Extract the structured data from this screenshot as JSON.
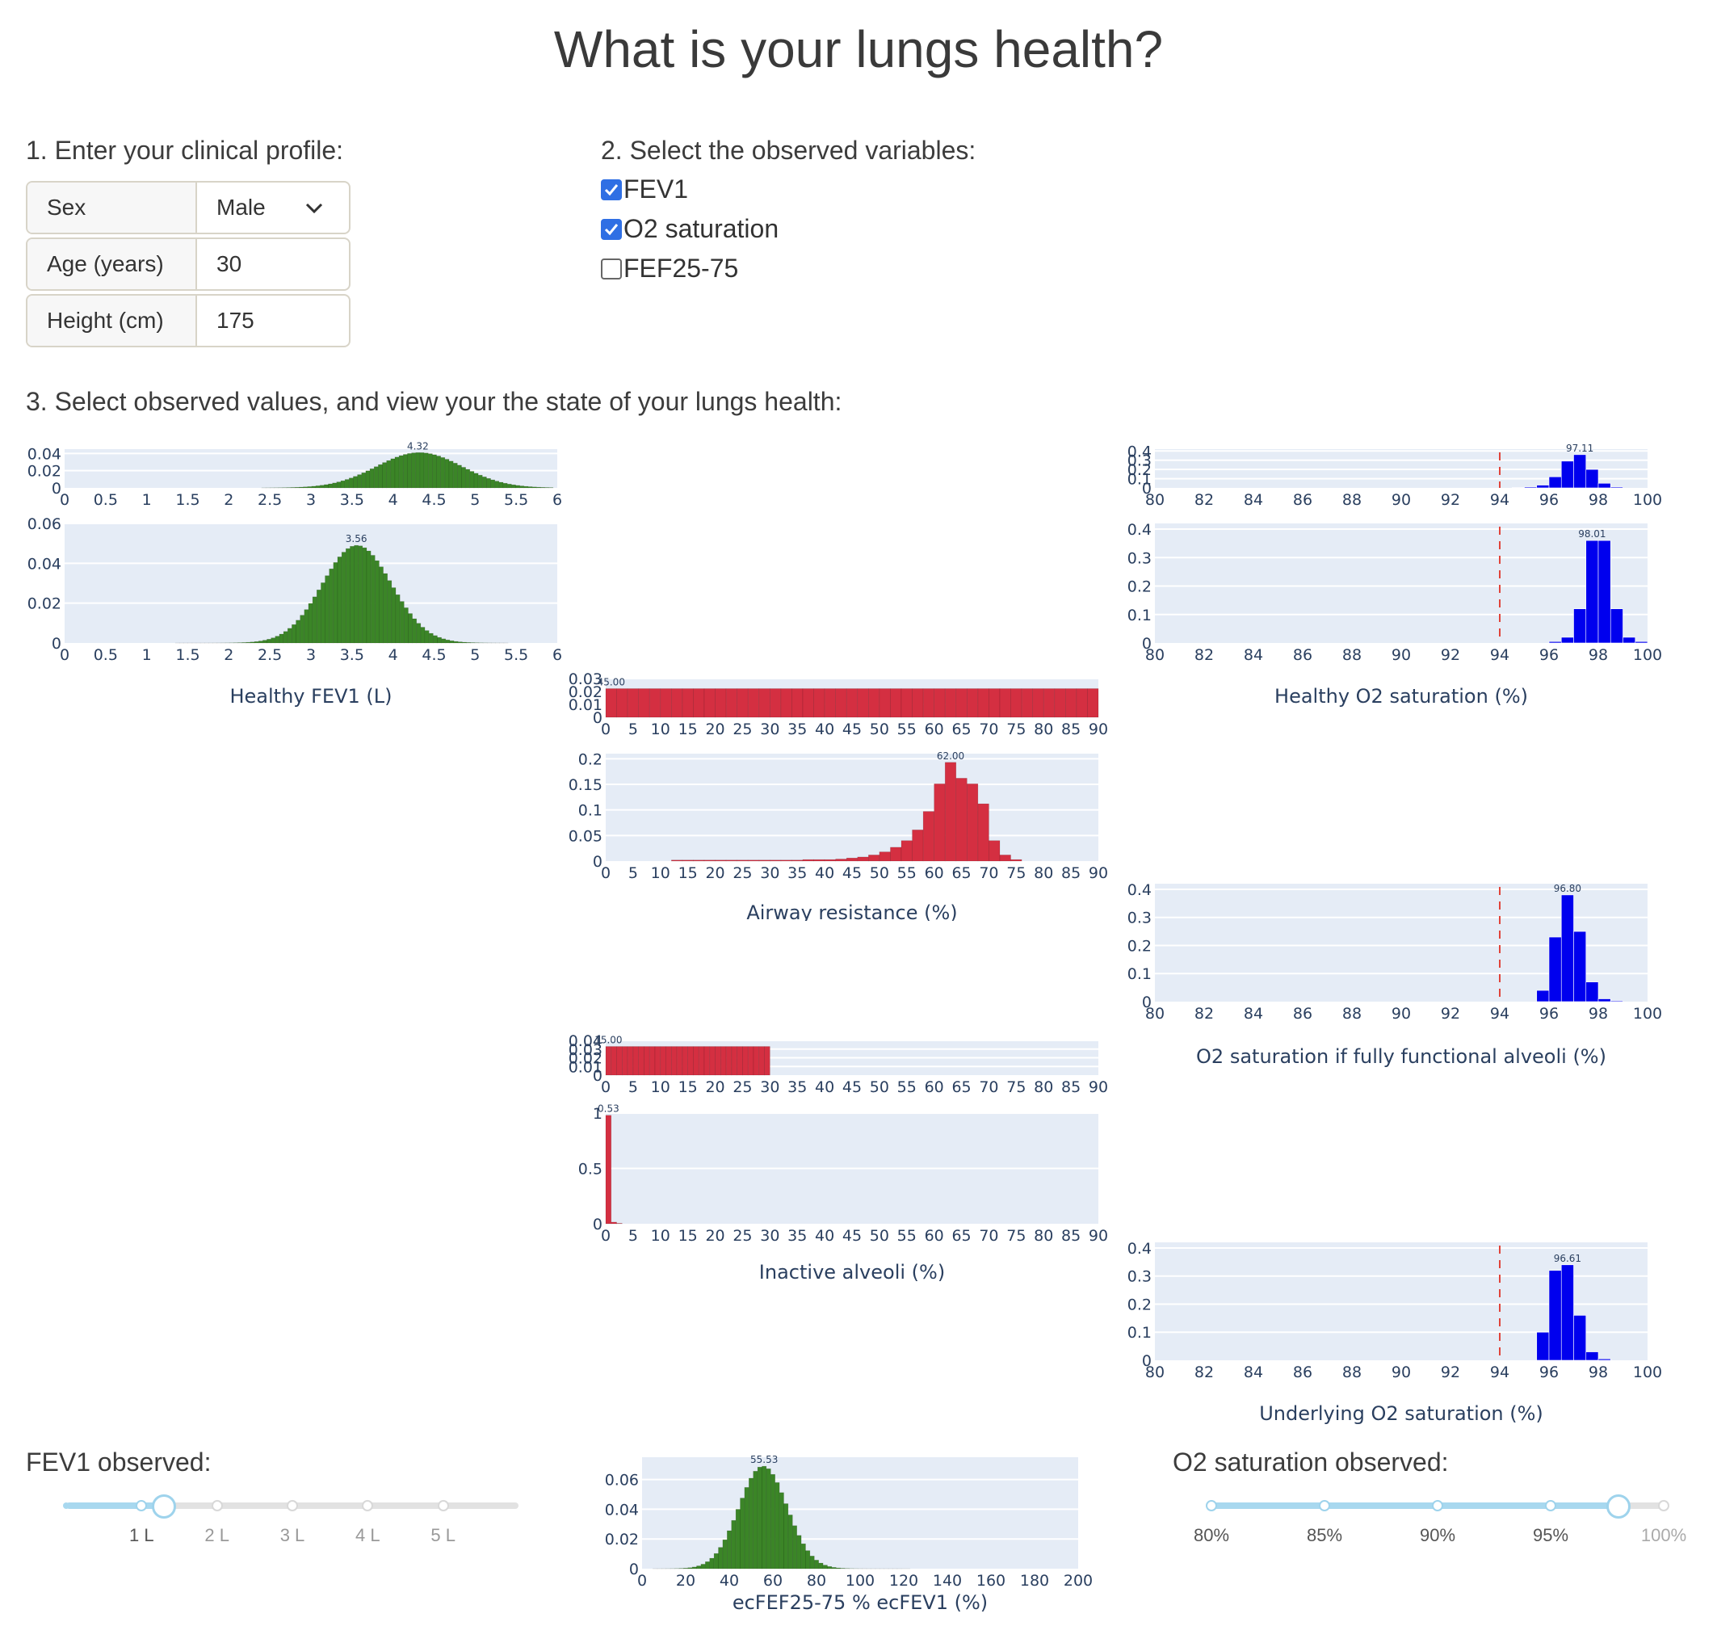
{
  "title": "What is your lungs health?",
  "section1": {
    "heading": "1. Enter your clinical profile:",
    "fields": [
      {
        "label": "Sex",
        "value": "Male"
      },
      {
        "label": "Age (years)",
        "value": "30"
      },
      {
        "label": "Height (cm)",
        "value": "175"
      }
    ]
  },
  "section2": {
    "heading": "2. Select the observed variables:",
    "variables": [
      {
        "label": "FEV1",
        "checked": true
      },
      {
        "label": "O2 saturation",
        "checked": true
      },
      {
        "label": "FEF25-75",
        "checked": false
      }
    ]
  },
  "section3": {
    "heading": "3. Select observed values, and view your the state of your lungs health:"
  },
  "colors": {
    "green": "#3b8527",
    "red": "#d42f41",
    "blue": "#0000ee",
    "plot_bg": "#e5ecf6",
    "ref_line": "#e0443a"
  },
  "chart_data": [
    {
      "type": "bar",
      "xlabel": "Healthy FEV1 (L)",
      "xticks": [
        "0",
        "0.5",
        "1",
        "1.5",
        "2",
        "2.5",
        "3",
        "3.5",
        "4",
        "4.5",
        "5",
        "5.5",
        "6"
      ],
      "top": {
        "annotation": "4.32",
        "xlim": [
          0,
          6
        ],
        "ylim": [
          0,
          0.045
        ],
        "yticks": [
          "0",
          "0.02",
          "0.04"
        ],
        "dist": {
          "kind": "normal",
          "mean": 4.32,
          "sd": 0.52,
          "peak": 0.041,
          "from": 2.4,
          "to": 5.95,
          "n": 70
        }
      },
      "bottom": {
        "annotation": "3.56",
        "xlim": [
          0,
          6
        ],
        "ylim": [
          0,
          0.06
        ],
        "yticks": [
          "0",
          "0.02",
          "0.04",
          "0.06"
        ],
        "dist": {
          "kind": "normal",
          "mean": 3.56,
          "sd": 0.42,
          "peak": 0.049,
          "from": 1.35,
          "to": 5.4,
          "n": 80
        }
      }
    },
    {
      "type": "bar",
      "xlabel": "Airway resistance (%)",
      "xticks": [
        "0",
        "5",
        "10",
        "15",
        "20",
        "25",
        "30",
        "35",
        "40",
        "45",
        "50",
        "55",
        "60",
        "65",
        "70",
        "75",
        "80",
        "85",
        "90"
      ],
      "top": {
        "annotation": "45.00",
        "xlim": [
          0,
          90
        ],
        "ylim": [
          0,
          0.03
        ],
        "yticks": [
          "0",
          "0.01",
          "0.02",
          "0.03"
        ],
        "dist": {
          "kind": "uniform",
          "value": 0.0222,
          "from": 0,
          "to": 90,
          "n": 45
        }
      },
      "bottom": {
        "annotation": "62.00",
        "xlim": [
          0,
          90
        ],
        "ylim": [
          0,
          0.21
        ],
        "yticks": [
          "0",
          "0.05",
          "0.1",
          "0.15",
          "0.2"
        ],
        "bin_width": 2,
        "bins": [
          [
            12,
            0.002
          ],
          [
            14,
            0.002
          ],
          [
            16,
            0.002
          ],
          [
            18,
            0.002
          ],
          [
            20,
            0.002
          ],
          [
            22,
            0.002
          ],
          [
            24,
            0.002
          ],
          [
            26,
            0.002
          ],
          [
            28,
            0.002
          ],
          [
            30,
            0.002
          ],
          [
            32,
            0.002
          ],
          [
            34,
            0.002
          ],
          [
            36,
            0.003
          ],
          [
            38,
            0.003
          ],
          [
            40,
            0.003
          ],
          [
            42,
            0.004
          ],
          [
            44,
            0.006
          ],
          [
            46,
            0.008
          ],
          [
            48,
            0.012
          ],
          [
            50,
            0.018
          ],
          [
            52,
            0.027
          ],
          [
            54,
            0.04
          ],
          [
            56,
            0.061
          ],
          [
            58,
            0.097
          ],
          [
            60,
            0.151
          ],
          [
            62,
            0.193
          ],
          [
            64,
            0.162
          ],
          [
            66,
            0.151
          ],
          [
            68,
            0.112
          ],
          [
            70,
            0.04
          ],
          [
            72,
            0.012
          ],
          [
            74,
            0.003
          ]
        ]
      }
    },
    {
      "type": "bar",
      "xlabel": "Healthy O2 saturation (%)",
      "xticks": [
        "80",
        "82",
        "84",
        "86",
        "88",
        "90",
        "92",
        "94",
        "96",
        "98",
        "100"
      ],
      "reference_line": 94,
      "top": {
        "annotation": "97.11",
        "xlim": [
          80,
          100
        ],
        "ylim": [
          0,
          0.42
        ],
        "yticks": [
          "0",
          "0.1",
          "0.2",
          "0.3",
          "0.4"
        ],
        "bin_width": 0.5,
        "bins": [
          [
            94.5,
            0.005
          ],
          [
            95,
            0.01
          ],
          [
            95.5,
            0.03
          ],
          [
            96,
            0.12
          ],
          [
            96.5,
            0.29
          ],
          [
            97,
            0.36
          ],
          [
            97.5,
            0.2
          ],
          [
            98,
            0.05
          ],
          [
            98.5,
            0.01
          ]
        ]
      },
      "bottom": {
        "annotation": "98.01",
        "xlim": [
          80,
          100
        ],
        "ylim": [
          0,
          0.42
        ],
        "yticks": [
          "0",
          "0.1",
          "0.2",
          "0.3",
          "0.4"
        ],
        "bin_width": 0.5,
        "bins": [
          [
            96,
            0.005
          ],
          [
            96.5,
            0.02
          ],
          [
            97,
            0.12
          ],
          [
            97.5,
            0.36
          ],
          [
            98,
            0.36
          ],
          [
            98.5,
            0.12
          ],
          [
            99,
            0.02
          ],
          [
            99.5,
            0.005
          ]
        ]
      }
    },
    {
      "type": "bar",
      "xlabel": "O2 saturation if fully functional alveoli (%)",
      "xticks": [
        "80",
        "82",
        "84",
        "86",
        "88",
        "90",
        "92",
        "94",
        "96",
        "98",
        "100"
      ],
      "reference_line": 94,
      "annotation": "96.80",
      "xlim": [
        80,
        100
      ],
      "ylim": [
        0,
        0.42
      ],
      "yticks": [
        "0",
        "0.1",
        "0.2",
        "0.3",
        "0.4"
      ],
      "bin_width": 0.5,
      "bins": [
        [
          95.5,
          0.04
        ],
        [
          96,
          0.23
        ],
        [
          96.5,
          0.38
        ],
        [
          97,
          0.25
        ],
        [
          97.5,
          0.07
        ],
        [
          98,
          0.01
        ],
        [
          98.5,
          0.003
        ]
      ]
    },
    {
      "type": "bar",
      "xlabel": "Inactive alveoli (%)",
      "xticks": [
        "0",
        "5",
        "10",
        "15",
        "20",
        "25",
        "30",
        "35",
        "40",
        "45",
        "50",
        "55",
        "60",
        "65",
        "70",
        "75",
        "80",
        "85",
        "90"
      ],
      "top": {
        "annotation": "15.00",
        "xlim": [
          0,
          90
        ],
        "ylim": [
          0,
          0.04
        ],
        "yticks": [
          "0",
          "0.01",
          "0.02",
          "0.03",
          "0.04"
        ],
        "dist": {
          "kind": "uniform",
          "value": 0.033,
          "from": 0,
          "to": 30,
          "n": 30
        }
      },
      "bottom": {
        "annotation": "0.53",
        "xlim": [
          0,
          90
        ],
        "ylim": [
          0,
          1
        ],
        "yticks": [
          "0",
          "0.5",
          "1"
        ],
        "bin_width": 1,
        "bins": [
          [
            0,
            0.98
          ],
          [
            1,
            0.015
          ],
          [
            2,
            0.004
          ]
        ]
      }
    },
    {
      "type": "bar",
      "xlabel": "Underlying O2 saturation (%)",
      "xticks": [
        "80",
        "82",
        "84",
        "86",
        "88",
        "90",
        "92",
        "94",
        "96",
        "98",
        "100"
      ],
      "reference_line": 94,
      "annotation": "96.61",
      "xlim": [
        80,
        100
      ],
      "ylim": [
        0,
        0.42
      ],
      "yticks": [
        "0",
        "0.1",
        "0.2",
        "0.3",
        "0.4"
      ],
      "bin_width": 0.5,
      "bins": [
        [
          95.5,
          0.1
        ],
        [
          96,
          0.32
        ],
        [
          96.5,
          0.34
        ],
        [
          97,
          0.16
        ],
        [
          97.5,
          0.03
        ],
        [
          98,
          0.005
        ]
      ]
    },
    {
      "type": "bar",
      "xlabel": "ecFEF25-75 % ecFEV1 (%)",
      "xticks": [
        "0",
        "20",
        "40",
        "60",
        "80",
        "100",
        "120",
        "140",
        "160",
        "180",
        "200"
      ],
      "annotation": "55.53",
      "xlim": [
        0,
        200
      ],
      "ylim": [
        0,
        0.075
      ],
      "yticks": [
        "0",
        "0.02",
        "0.04",
        "0.06"
      ],
      "dist": {
        "kind": "normal",
        "mean": 55.5,
        "sd": 11,
        "peak": 0.069,
        "from": 5,
        "to": 125,
        "n": 60
      }
    }
  ],
  "fev1_slider": {
    "label": "FEV1 observed:",
    "min": 0,
    "max": 6,
    "value": 1.3,
    "ticks": [
      "1 L",
      "2 L",
      "3 L",
      "4 L",
      "5 L"
    ]
  },
  "o2_slider": {
    "label": "O2 saturation observed:",
    "min": 80,
    "max": 100,
    "value": 98,
    "ticks": [
      "80%",
      "85%",
      "90%",
      "95%",
      "100%"
    ]
  }
}
